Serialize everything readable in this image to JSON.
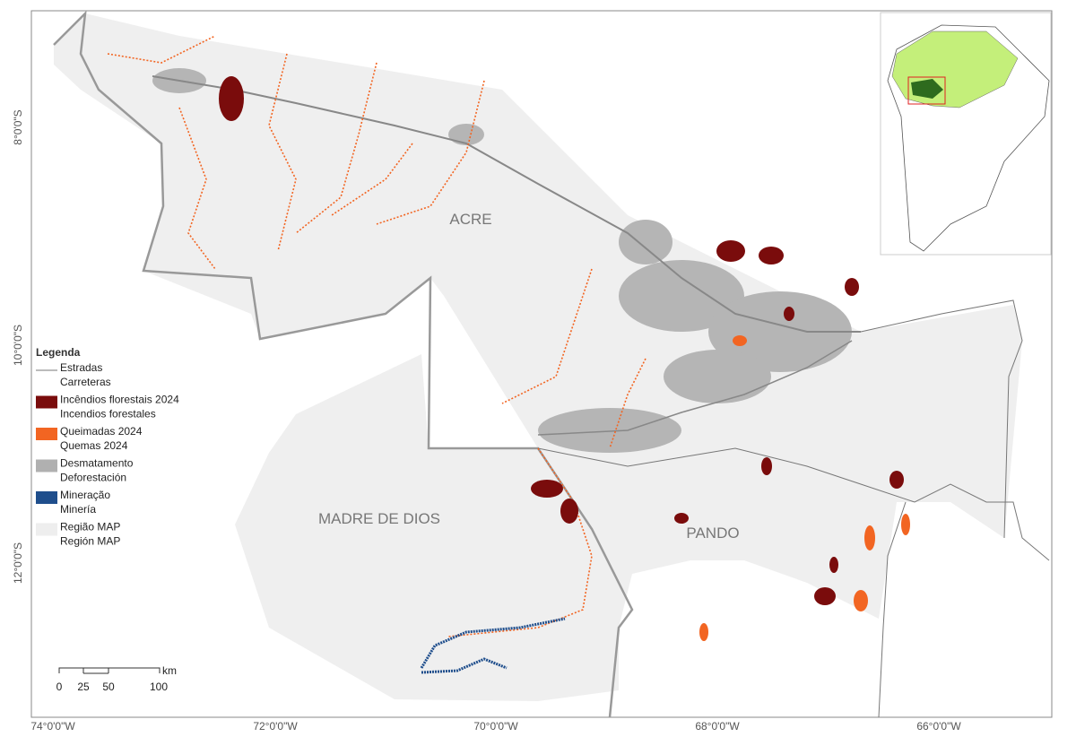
{
  "map": {
    "regions": [
      "ACRE",
      "MADRE DE DIOS",
      "PANDO"
    ],
    "legend": {
      "title": "Legenda",
      "items": [
        {
          "line1": "Estradas",
          "line2": "Carreteras",
          "color": "#777777",
          "kind": "line"
        },
        {
          "line1": "Incêndios florestais 2024",
          "line2": "Incendios forestales",
          "color": "#7a0c0c",
          "kind": "box"
        },
        {
          "line1": "Queimadas 2024",
          "line2": "Quemas 2024",
          "color": "#f26522",
          "kind": "box"
        },
        {
          "line1": "Desmatamento",
          "line2": "Deforestación",
          "color": "#b0b0b0",
          "kind": "box"
        },
        {
          "line1": "Mineração",
          "line2": "Minería",
          "color": "#1f4e8c",
          "kind": "box"
        },
        {
          "line1": "Região MAP",
          "line2": "Región MAP",
          "color": "#eeeeee",
          "kind": "box"
        }
      ]
    },
    "scale": {
      "ticks": [
        0,
        25,
        50,
        100
      ],
      "unit": "km"
    },
    "lat_labels": [
      "8°0'0\"S",
      "10°0'0\"S",
      "12°0'0\"S"
    ],
    "lon_labels": [
      "74°0'0\"W",
      "72°0'0\"W",
      "70°0'0\"W",
      "68°0'0\"W",
      "66°0'0\"W"
    ]
  }
}
